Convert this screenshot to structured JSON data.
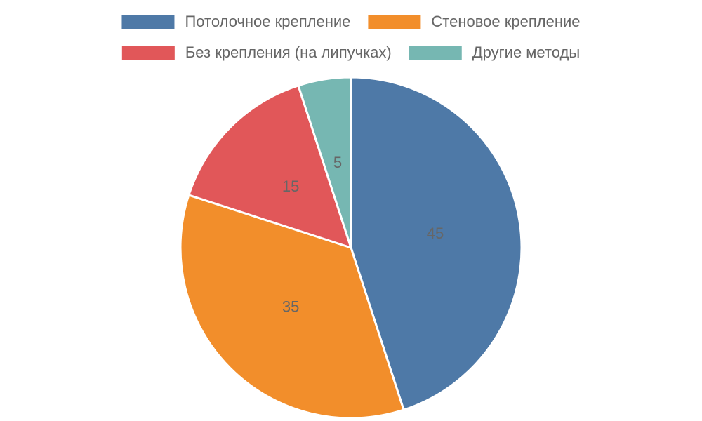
{
  "chart_data": {
    "type": "pie",
    "categories": [
      "Потолочное крепление",
      "Стеновое крепление",
      "Без крепления (на липучках)",
      "Другие методы"
    ],
    "values": [
      45,
      35,
      15,
      5
    ],
    "colors": [
      "#4e79a7",
      "#f28e2b",
      "#e15759",
      "#76b7b2"
    ],
    "legend": "top"
  }
}
